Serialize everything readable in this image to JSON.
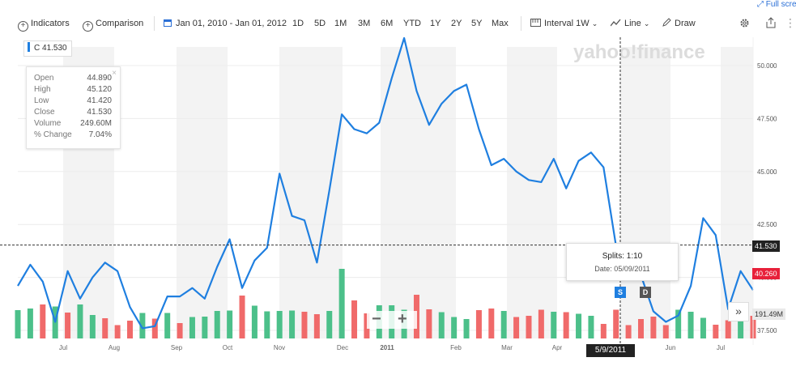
{
  "toolbar": {
    "indicators": "Indicators",
    "comparison": "Comparison",
    "date_range": "Jan 01, 2010 - Jan 01, 2012",
    "ranges": [
      "1D",
      "5D",
      "1M",
      "3M",
      "6M",
      "YTD",
      "1Y",
      "2Y",
      "5Y",
      "Max"
    ],
    "interval": "Interval",
    "interval_value": "1W",
    "chart_type": "Line",
    "draw": "Draw",
    "full_screen": "Full scre"
  },
  "watermark": "yahoo!finance",
  "price_tag": {
    "symbol": "C",
    "value": "41.530"
  },
  "ohlc": {
    "open_label": "Open",
    "open": "44.890",
    "high_label": "High",
    "high": "45.120",
    "low_label": "Low",
    "low": "41.420",
    "close_label": "Close",
    "close": "41.530",
    "volume_label": "Volume",
    "volume": "249.60M",
    "change_label": "% Change",
    "change": "7.04%"
  },
  "tooltip": {
    "title": "Splits: 1:10",
    "date": "Date: 05/09/2011"
  },
  "markers": {
    "split": "S",
    "dividend": "D"
  },
  "crosshair": {
    "date": "5/9/2011",
    "price": "41.530"
  },
  "tags": {
    "current_price": "40.260",
    "volume": "191.49M"
  },
  "zoom": {
    "minus": "−",
    "plus": "+"
  },
  "colors": {
    "line": "#1f7fe0",
    "up": "#4cc08a",
    "down": "#f06a6a",
    "current": "#e8203a"
  },
  "chart_data": {
    "type": "line",
    "series": [
      {
        "name": "C",
        "values": [
          39.6,
          40.6,
          39.8,
          37.9,
          40.3,
          39.0,
          40.0,
          40.7,
          40.3,
          38.6,
          37.6,
          37.7,
          39.1,
          39.1,
          39.5,
          39.0,
          40.5,
          41.8,
          39.5,
          40.8,
          41.4,
          44.9,
          42.9,
          42.7,
          40.7,
          44.1,
          47.7,
          47.0,
          46.8,
          47.3,
          49.4,
          51.3,
          48.8,
          47.2,
          48.2,
          48.8,
          49.1,
          47.0,
          45.3,
          45.6,
          45.0,
          44.6,
          44.5,
          45.6,
          44.2,
          45.5,
          45.9,
          45.2,
          41.5,
          41.5,
          40.1,
          38.4,
          37.9,
          38.2,
          39.6,
          42.8,
          42.0,
          38.5,
          40.3,
          39.4
        ]
      }
    ],
    "volume": {
      "values": [
        0.7,
        0.74,
        0.84,
        0.79,
        0.64,
        0.84,
        0.58,
        0.5,
        0.33,
        0.44,
        0.63,
        0.49,
        0.63,
        0.38,
        0.53,
        0.54,
        0.68,
        0.69,
        1.06,
        0.81,
        0.67,
        0.68,
        0.69,
        0.66,
        0.6,
        0.68,
        1.72,
        0.94,
        0.62,
        0.82,
        0.82,
        0.71,
        1.08,
        0.72,
        0.65,
        0.53,
        0.48,
        0.7,
        0.74,
        0.68,
        0.53,
        0.56,
        0.71,
        0.66,
        0.65,
        0.61,
        0.56,
        0.36,
        0.71,
        0.33,
        0.48,
        0.54,
        0.33,
        0.71,
        0.66,
        0.51,
        0.34,
        0.45,
        0.46,
        0.56
      ],
      "up": [
        true,
        true,
        false,
        true,
        false,
        true,
        true,
        false,
        false,
        false,
        true,
        false,
        true,
        false,
        true,
        true,
        true,
        true,
        false,
        true,
        true,
        true,
        true,
        false,
        false,
        true,
        true,
        false,
        false,
        true,
        true,
        true,
        false,
        false,
        true,
        true,
        true,
        false,
        false,
        true,
        false,
        false,
        false,
        true,
        false,
        true,
        true,
        false,
        false,
        false,
        false,
        false,
        false,
        true,
        true,
        true,
        false,
        false,
        true,
        false
      ],
      "scale": "M",
      "current_label": "191.49M"
    },
    "x_labels": [
      "Jul",
      "Aug",
      "Sep",
      "Oct",
      "Nov",
      "Dec",
      "2011",
      "Feb",
      "Mar",
      "Apr",
      "May",
      "Jun",
      "Jul"
    ],
    "y_ticks": [
      "37.500",
      "40.000",
      "42.500",
      "45.000",
      "47.500",
      "50.000"
    ],
    "ylim": [
      36.8,
      52.8
    ],
    "grid": true,
    "xlabel": "",
    "ylabel": ""
  }
}
